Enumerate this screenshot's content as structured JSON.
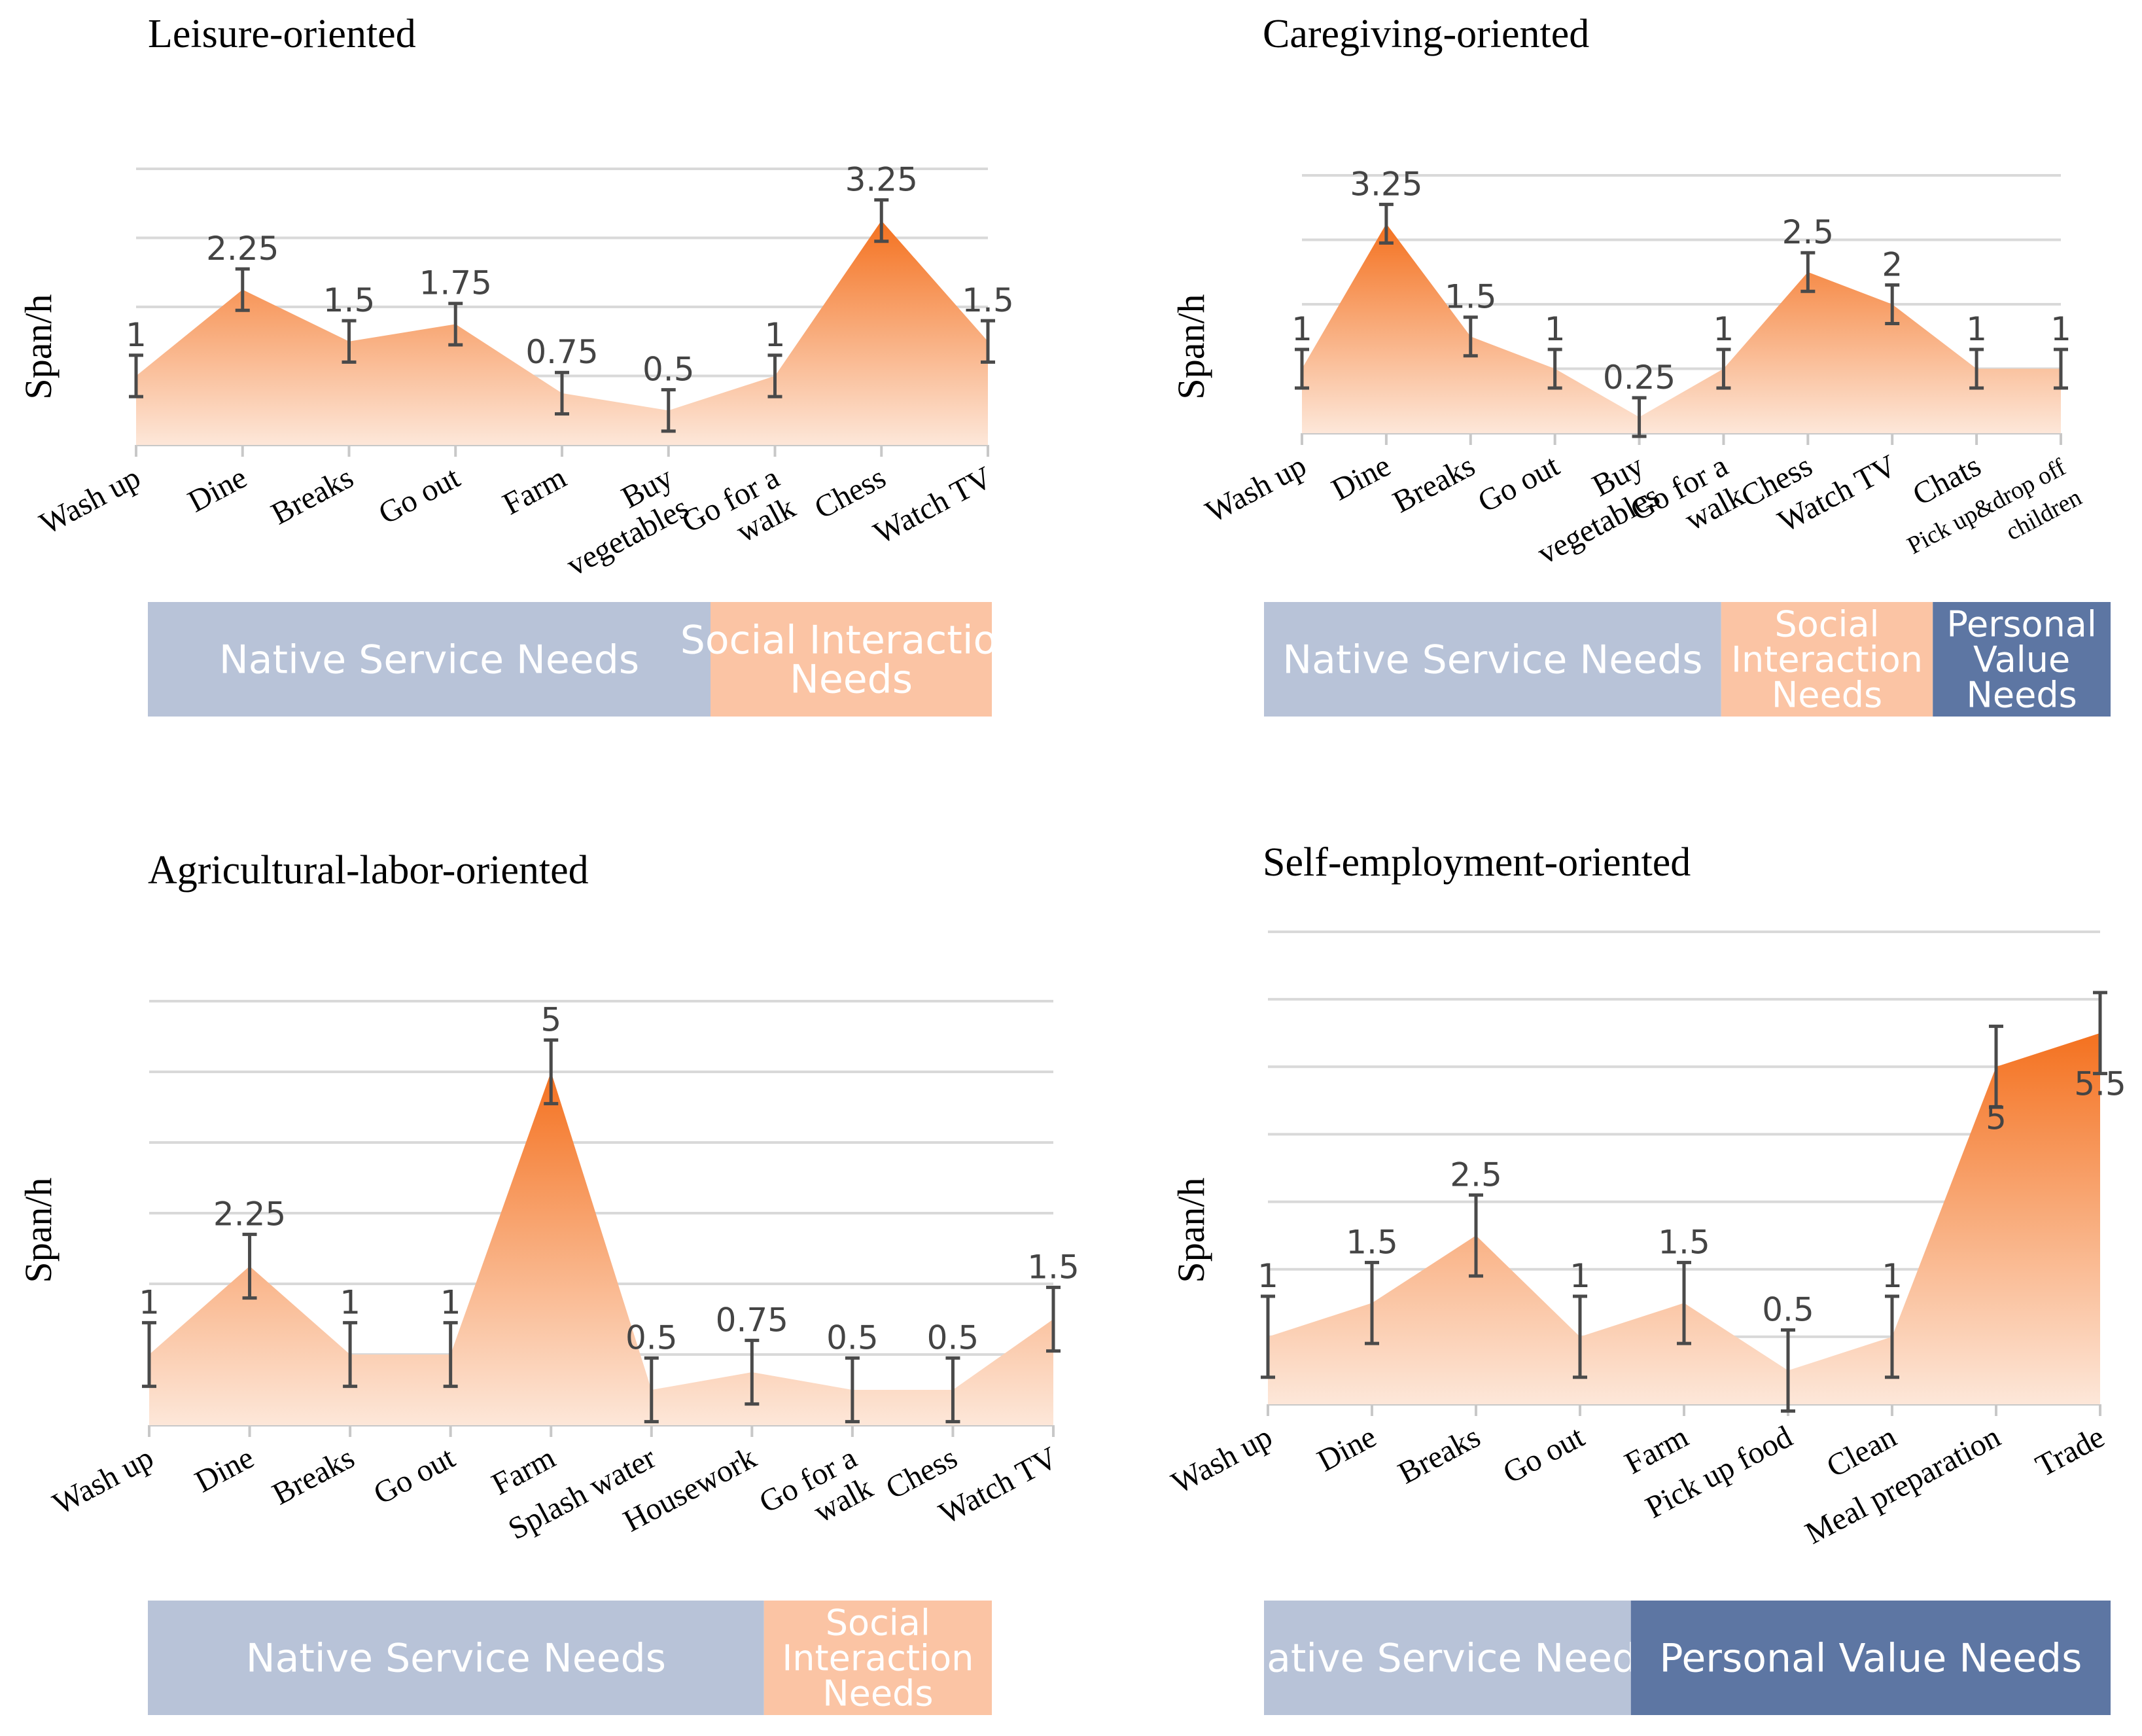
{
  "colors": {
    "grid": "#d9d9d9",
    "axis": "#c8c8c8",
    "area_dark": "#f4711f",
    "area_light": "#fde7d9",
    "errorbar": "#4a4a4a",
    "native": "#b8c3d8",
    "social": "#fbc4a4",
    "personal": "#5d76a3",
    "band_text": "#ffffff",
    "value_text": "#444444",
    "text": "#000000"
  },
  "chart_data": [
    {
      "type": "area",
      "title": "Leisure-oriented",
      "ylabel": "Span/h",
      "xlabel": "",
      "ylim": [
        0,
        4
      ],
      "grid": true,
      "categories": [
        "Wash up",
        "Dine",
        "Breaks",
        "Go out",
        "Farm",
        "Buy vegetables",
        "Go for a walk",
        "Chess",
        "Watch TV"
      ],
      "tick_labels": [
        [
          "Wash up"
        ],
        [
          "Dine"
        ],
        [
          "Breaks"
        ],
        [
          "Go out"
        ],
        [
          "Farm"
        ],
        [
          "Buy",
          "vegetables"
        ],
        [
          "Go for a",
          "walk"
        ],
        [
          "Chess"
        ],
        [
          "Watch TV"
        ]
      ],
      "values": [
        1,
        2.25,
        1.5,
        1.75,
        0.75,
        0.5,
        1,
        3.25,
        1.5
      ],
      "value_labels": [
        "1",
        "2.25",
        "1.5",
        "1.75",
        "0.75",
        "0.5",
        "1",
        "3.25",
        "1.5"
      ],
      "error": [
        0.3,
        0.3,
        0.3,
        0.3,
        0.3,
        0.3,
        0.3,
        0.3,
        0.3
      ],
      "need_bands": [
        {
          "label": [
            "Native Service Needs"
          ],
          "kind": "native",
          "span": [
            0,
            6
          ]
        },
        {
          "label": [
            "Social Interaction",
            "Needs"
          ],
          "kind": "social",
          "span": [
            6,
            9
          ]
        }
      ]
    },
    {
      "type": "area",
      "title": "Caregiving-oriented",
      "ylabel": "Span/h",
      "xlabel": "",
      "ylim": [
        0,
        4
      ],
      "grid": true,
      "categories": [
        "Wash up",
        "Dine",
        "Breaks",
        "Go out",
        "Buy vegetables",
        "Go for a walk",
        "Chess",
        "Watch TV",
        "Chats",
        "Pick up&drop off children"
      ],
      "tick_labels": [
        [
          "Wash up"
        ],
        [
          "Dine"
        ],
        [
          "Breaks"
        ],
        [
          "Go out"
        ],
        [
          "Buy",
          "vegetables"
        ],
        [
          "Go for a",
          "walk"
        ],
        [
          "Chess"
        ],
        [
          "Watch TV"
        ],
        [
          "Chats"
        ],
        [
          "Pick up&drop off",
          "children"
        ]
      ],
      "values": [
        1,
        3.25,
        1.5,
        1,
        0.25,
        1,
        2.5,
        2,
        1,
        1
      ],
      "value_labels": [
        "1",
        "3.25",
        "1.5",
        "1",
        "0.25",
        "1",
        "2.5",
        "2",
        "1",
        "1"
      ],
      "error": [
        0.3,
        0.3,
        0.3,
        0.3,
        0.3,
        0.3,
        0.3,
        0.3,
        0.3,
        0.3
      ],
      "need_bands": [
        {
          "label": [
            "Native Service Needs"
          ],
          "kind": "native",
          "span": [
            0,
            5.4
          ]
        },
        {
          "label": [
            "Social",
            "Interaction",
            "Needs"
          ],
          "kind": "social",
          "span": [
            5.4,
            7.9
          ]
        },
        {
          "label": [
            "Personal",
            "Value",
            "Needs"
          ],
          "kind": "personal",
          "span": [
            7.9,
            10
          ]
        }
      ]
    },
    {
      "type": "area",
      "title": "Agricultural-labor-oriented",
      "ylabel": "Span/h",
      "xlabel": "",
      "ylim": [
        0,
        6
      ],
      "grid": true,
      "categories": [
        "Wash up",
        "Dine",
        "Breaks",
        "Go out",
        "Farm",
        "Splash water",
        "Housework",
        "Go for a walk",
        "Chess",
        "Watch TV"
      ],
      "tick_labels": [
        [
          "Wash up"
        ],
        [
          "Dine"
        ],
        [
          "Breaks"
        ],
        [
          "Go out"
        ],
        [
          "Farm"
        ],
        [
          "Splash water"
        ],
        [
          "Housework"
        ],
        [
          "Go for a",
          "walk"
        ],
        [
          "Chess"
        ],
        [
          "Watch TV"
        ]
      ],
      "values": [
        1,
        2.25,
        1,
        1,
        5,
        0.5,
        0.75,
        0.5,
        0.5,
        1.5
      ],
      "value_labels": [
        "1",
        "2.25",
        "1",
        "1",
        "5",
        "0.5",
        "0.75",
        "0.5",
        "0.5",
        "1.5"
      ],
      "error": [
        0.45,
        0.45,
        0.45,
        0.45,
        0.45,
        0.45,
        0.45,
        0.45,
        0.45,
        0.45
      ],
      "need_bands": [
        {
          "label": [
            "Native Service Needs"
          ],
          "kind": "native",
          "span": [
            0,
            7.3
          ]
        },
        {
          "label": [
            "Social",
            "Interaction",
            "Needs"
          ],
          "kind": "social",
          "span": [
            7.3,
            10
          ]
        }
      ]
    },
    {
      "type": "area",
      "title": "Self-employment-oriented",
      "ylabel": "Span/h",
      "xlabel": "",
      "ylim": [
        0,
        7
      ],
      "grid": true,
      "categories": [
        "Wash up",
        "Dine",
        "Breaks",
        "Go out",
        "Farm",
        "Pick up food",
        "Clean",
        "Meal preparation",
        "Trade"
      ],
      "tick_labels": [
        [
          "Wash up"
        ],
        [
          "Dine"
        ],
        [
          "Breaks"
        ],
        [
          "Go out"
        ],
        [
          "Farm"
        ],
        [
          "Pick up food"
        ],
        [
          "Clean"
        ],
        [
          "Meal preparation"
        ],
        [
          "Trade"
        ]
      ],
      "values": [
        1,
        1.5,
        2.5,
        1,
        1.5,
        0.5,
        1,
        5,
        5.5
      ],
      "value_labels": [
        "1",
        "1.5",
        "2.5",
        "1",
        "1.5",
        "0.5",
        "1",
        "5",
        "5.5"
      ],
      "error": [
        0.6,
        0.6,
        0.6,
        0.6,
        0.6,
        0.6,
        0.6,
        0.6,
        0.6
      ],
      "need_bands": [
        {
          "label": [
            "Native Service Needs"
          ],
          "kind": "native",
          "span": [
            0,
            3.9
          ]
        },
        {
          "label": [
            "Personal Value Needs"
          ],
          "kind": "personal",
          "span": [
            3.9,
            9
          ]
        }
      ]
    }
  ]
}
